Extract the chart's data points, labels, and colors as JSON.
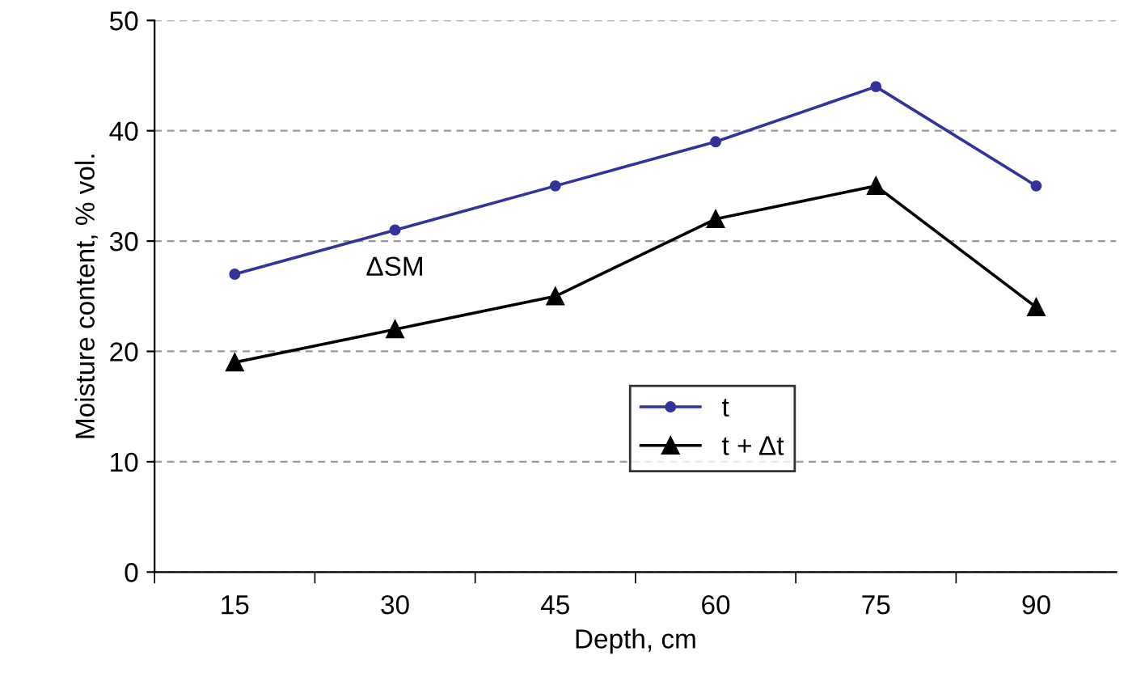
{
  "chart_data": {
    "type": "line",
    "xlabel": "Depth, cm",
    "ylabel": "Moisture content, % vol.",
    "categories": [
      "15",
      "30",
      "45",
      "60",
      "75",
      "90"
    ],
    "series": [
      {
        "name": "t",
        "color": "#333399",
        "marker": "circle",
        "values": [
          27,
          31,
          35,
          39,
          44,
          35
        ]
      },
      {
        "name": "t + Δt",
        "color": "#000000",
        "marker": "triangle",
        "values": [
          19,
          22,
          25,
          32,
          35,
          24
        ]
      }
    ],
    "ylim": [
      0,
      50
    ],
    "yticks": [
      0,
      10,
      20,
      30,
      40,
      50
    ],
    "grid": "y",
    "legend": "center",
    "annotations": [
      "ΔSM"
    ]
  }
}
